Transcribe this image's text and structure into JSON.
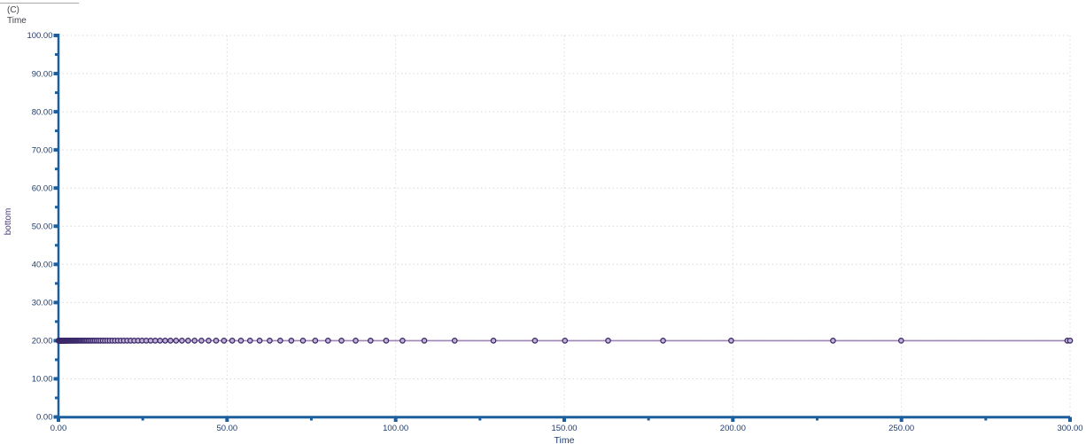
{
  "header": {
    "unit_label": "(C)",
    "series_label": "Time"
  },
  "chart_data": {
    "type": "line",
    "title": "",
    "xlabel": "Time",
    "ylabel": "bottom",
    "y_unit": "(C)",
    "xlim": [
      0,
      300
    ],
    "ylim": [
      0,
      100
    ],
    "grid": "dotted, major gridlines only, light gray",
    "legend_position": "top-left",
    "x_tick_values": [
      0,
      50,
      100,
      150,
      200,
      250,
      300
    ],
    "x_tick_labels": [
      "0.00",
      "50.00",
      "100.00",
      "150.00",
      "200.00",
      "250.00",
      "300.00"
    ],
    "x_minor_step": 25,
    "y_tick_values": [
      0,
      10,
      20,
      30,
      40,
      50,
      60,
      70,
      80,
      90,
      100
    ],
    "y_tick_labels": [
      "0.00",
      "10.00",
      "20.00",
      "30.00",
      "40.00",
      "50.00",
      "60.00",
      "70.00",
      "80.00",
      "90.00",
      "100.00"
    ],
    "y_minor_step": 5,
    "series": [
      {
        "name": "bottom",
        "y_constant": 20,
        "marker": "open-circle",
        "x": [
          0,
          0.1,
          0.2,
          0.3,
          0.4,
          0.5,
          0.53,
          0.55,
          0.58,
          0.61,
          0.64,
          0.67,
          0.7,
          0.74,
          0.78,
          0.81,
          0.86,
          0.9,
          0.94,
          0.99,
          1.04,
          1.09,
          1.15,
          1.2,
          1.26,
          1.33,
          1.39,
          1.46,
          1.54,
          1.61,
          1.69,
          1.78,
          1.87,
          1.96,
          2.06,
          2.16,
          2.27,
          2.38,
          2.5,
          2.63,
          2.76,
          2.9,
          3.04,
          3.19,
          3.35,
          3.52,
          3.7,
          3.88,
          4.08,
          4.28,
          4.49,
          4.72,
          4.95,
          5.2,
          5.46,
          5.73,
          6.02,
          6.32,
          6.64,
          6.97,
          7.32,
          7.69,
          8.07,
          8.47,
          8.9,
          9.34,
          9.81,
          10.3,
          10.81,
          11.35,
          11.92,
          12.52,
          13.15,
          13.8,
          14.49,
          15.22,
          15.98,
          16.78,
          17.62,
          18.5,
          19.42,
          20.39,
          21.41,
          22.48,
          23.61,
          24.79,
          26.03,
          27.33,
          28.7,
          30.13,
          31.64,
          33.22,
          34.88,
          36.62,
          38.45,
          40.38,
          42.4,
          44.52,
          46.74,
          49.08,
          51.53,
          54.11,
          56.82,
          59.66,
          62.64,
          65.77,
          69.06,
          72.51,
          76.14,
          79.94,
          83.94,
          88.14,
          92.55,
          97.17,
          102.03,
          108.5,
          117.5,
          129,
          141.3,
          150.2,
          163,
          179.3,
          199.5,
          229.7,
          249.9,
          299.2,
          300
        ]
      }
    ],
    "colors": {
      "axis": "#1d5e9e",
      "grid": "#d9d9d9",
      "tick_text": "#1f3c6e",
      "header_text": "#44444c",
      "y_title": "#4b3a7a",
      "line": "#9c85b5",
      "marker_stroke": "#3b2a6b",
      "marker_fill": "#c3b2d6",
      "separator": "#a8a8a8"
    }
  }
}
